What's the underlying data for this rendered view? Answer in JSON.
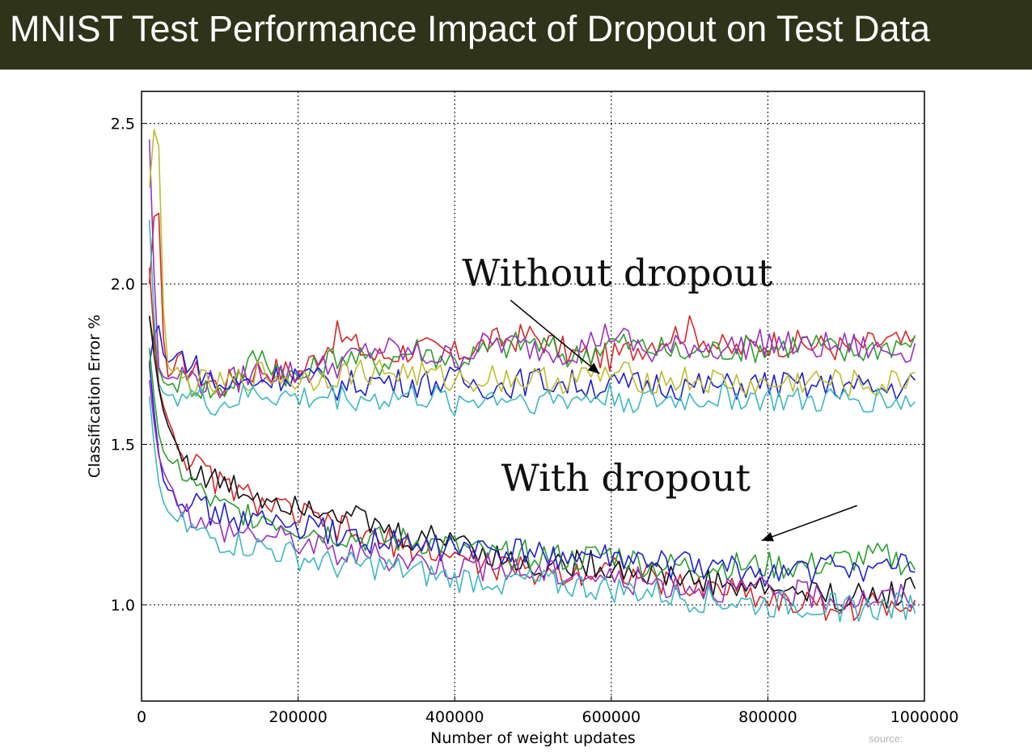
{
  "slide": {
    "title": "MNIST Test Performance Impact of Dropout on Test Data",
    "title_bar_color": "#2e3319",
    "source_label": "source:"
  },
  "chart_data": {
    "type": "line",
    "xlabel": "Number of weight updates",
    "ylabel": "Classification Error %",
    "xlim": [
      0,
      1000000
    ],
    "ylim": [
      0.7,
      2.6
    ],
    "xticks": [
      0,
      200000,
      400000,
      600000,
      800000,
      1000000
    ],
    "xtick_labels": [
      "0",
      "200000",
      "400000",
      "600000",
      "800000",
      "1000000"
    ],
    "yticks": [
      1.0,
      1.5,
      2.0,
      2.5
    ],
    "ytick_labels": [
      "1.0",
      "1.5",
      "2.0",
      "2.5"
    ],
    "grid": true,
    "legend": "none",
    "annotations": [
      {
        "text": "Without dropout",
        "x": 430000,
        "y": 2.05,
        "arrow_to": [
          585000,
          1.72
        ]
      },
      {
        "text": "With dropout",
        "x": 480000,
        "y": 1.41,
        "arrow_to": [
          792000,
          1.2
        ]
      }
    ],
    "series": [
      {
        "color": "#d62728",
        "values": [
          [
            10000,
            2.0
          ],
          [
            20000,
            2.35
          ],
          [
            30000,
            1.7
          ],
          [
            50000,
            1.75
          ],
          [
            100000,
            1.68
          ],
          [
            150000,
            1.74
          ],
          [
            200000,
            1.72
          ],
          [
            250000,
            1.84
          ],
          [
            300000,
            1.77
          ],
          [
            350000,
            1.8
          ],
          [
            400000,
            1.78
          ],
          [
            450000,
            1.82
          ],
          [
            500000,
            1.84
          ],
          [
            550000,
            1.78
          ],
          [
            600000,
            1.77
          ],
          [
            650000,
            1.82
          ],
          [
            700000,
            1.86
          ],
          [
            750000,
            1.79
          ],
          [
            800000,
            1.82
          ],
          [
            850000,
            1.81
          ],
          [
            900000,
            1.8
          ],
          [
            950000,
            1.82
          ],
          [
            990000,
            1.81
          ]
        ]
      },
      {
        "color": "#2ca02c",
        "values": [
          [
            10000,
            1.9
          ],
          [
            20000,
            1.75
          ],
          [
            30000,
            1.68
          ],
          [
            50000,
            1.7
          ],
          [
            100000,
            1.66
          ],
          [
            150000,
            1.78
          ],
          [
            200000,
            1.7
          ],
          [
            250000,
            1.78
          ],
          [
            300000,
            1.75
          ],
          [
            350000,
            1.8
          ],
          [
            400000,
            1.76
          ],
          [
            450000,
            1.8
          ],
          [
            500000,
            1.82
          ],
          [
            550000,
            1.77
          ],
          [
            600000,
            1.82
          ],
          [
            650000,
            1.8
          ],
          [
            700000,
            1.78
          ],
          [
            750000,
            1.8
          ],
          [
            800000,
            1.8
          ],
          [
            850000,
            1.82
          ],
          [
            900000,
            1.78
          ],
          [
            950000,
            1.81
          ],
          [
            990000,
            1.82
          ]
        ]
      },
      {
        "color": "#9b30c0",
        "values": [
          [
            10000,
            2.45
          ],
          [
            20000,
            1.75
          ],
          [
            30000,
            1.7
          ],
          [
            50000,
            1.72
          ],
          [
            100000,
            1.68
          ],
          [
            150000,
            1.73
          ],
          [
            200000,
            1.72
          ],
          [
            250000,
            1.75
          ],
          [
            300000,
            1.8
          ],
          [
            350000,
            1.78
          ],
          [
            400000,
            1.77
          ],
          [
            450000,
            1.82
          ],
          [
            500000,
            1.8
          ],
          [
            550000,
            1.79
          ],
          [
            600000,
            1.85
          ],
          [
            650000,
            1.78
          ],
          [
            700000,
            1.81
          ],
          [
            750000,
            1.8
          ],
          [
            800000,
            1.82
          ],
          [
            850000,
            1.8
          ],
          [
            900000,
            1.81
          ],
          [
            950000,
            1.79
          ],
          [
            990000,
            1.8
          ]
        ]
      },
      {
        "color": "#1f1fd0",
        "values": [
          [
            10000,
            1.75
          ],
          [
            20000,
            1.9
          ],
          [
            30000,
            1.75
          ],
          [
            50000,
            1.78
          ],
          [
            100000,
            1.68
          ],
          [
            150000,
            1.7
          ],
          [
            200000,
            1.72
          ],
          [
            250000,
            1.68
          ],
          [
            300000,
            1.7
          ],
          [
            350000,
            1.69
          ],
          [
            400000,
            1.7
          ],
          [
            450000,
            1.68
          ],
          [
            500000,
            1.7
          ],
          [
            550000,
            1.69
          ],
          [
            600000,
            1.68
          ],
          [
            650000,
            1.69
          ],
          [
            700000,
            1.68
          ],
          [
            750000,
            1.68
          ],
          [
            800000,
            1.69
          ],
          [
            850000,
            1.68
          ],
          [
            900000,
            1.68
          ],
          [
            950000,
            1.67
          ],
          [
            990000,
            1.69
          ]
        ]
      },
      {
        "color": "#bdbd2d",
        "values": [
          [
            10000,
            2.3
          ],
          [
            20000,
            2.6
          ],
          [
            30000,
            1.75
          ],
          [
            50000,
            1.7
          ],
          [
            100000,
            1.68
          ],
          [
            150000,
            1.72
          ],
          [
            200000,
            1.7
          ],
          [
            250000,
            1.72
          ],
          [
            300000,
            1.73
          ],
          [
            350000,
            1.72
          ],
          [
            400000,
            1.7
          ],
          [
            450000,
            1.71
          ],
          [
            500000,
            1.7
          ],
          [
            550000,
            1.7
          ],
          [
            600000,
            1.72
          ],
          [
            650000,
            1.7
          ],
          [
            700000,
            1.7
          ],
          [
            750000,
            1.69
          ],
          [
            800000,
            1.68
          ],
          [
            850000,
            1.7
          ],
          [
            900000,
            1.69
          ],
          [
            950000,
            1.68
          ],
          [
            990000,
            1.72
          ]
        ]
      },
      {
        "color": "#3cb8c0",
        "values": [
          [
            10000,
            2.2
          ],
          [
            20000,
            1.7
          ],
          [
            30000,
            1.65
          ],
          [
            50000,
            1.66
          ],
          [
            100000,
            1.62
          ],
          [
            150000,
            1.66
          ],
          [
            200000,
            1.64
          ],
          [
            250000,
            1.65
          ],
          [
            300000,
            1.64
          ],
          [
            350000,
            1.65
          ],
          [
            400000,
            1.63
          ],
          [
            450000,
            1.65
          ],
          [
            500000,
            1.64
          ],
          [
            550000,
            1.64
          ],
          [
            600000,
            1.65
          ],
          [
            650000,
            1.63
          ],
          [
            700000,
            1.64
          ],
          [
            750000,
            1.65
          ],
          [
            800000,
            1.64
          ],
          [
            850000,
            1.63
          ],
          [
            900000,
            1.64
          ],
          [
            950000,
            1.64
          ],
          [
            990000,
            1.63
          ]
        ]
      },
      {
        "color": "#d62728",
        "values": [
          [
            10000,
            2.05
          ],
          [
            20000,
            1.7
          ],
          [
            30000,
            1.6
          ],
          [
            50000,
            1.48
          ],
          [
            75000,
            1.42
          ],
          [
            100000,
            1.38
          ],
          [
            150000,
            1.32
          ],
          [
            200000,
            1.28
          ],
          [
            250000,
            1.24
          ],
          [
            300000,
            1.2
          ],
          [
            350000,
            1.18
          ],
          [
            400000,
            1.15
          ],
          [
            450000,
            1.12
          ],
          [
            500000,
            1.1
          ],
          [
            550000,
            1.1
          ],
          [
            600000,
            1.12
          ],
          [
            650000,
            1.08
          ],
          [
            700000,
            1.05
          ],
          [
            750000,
            1.06
          ],
          [
            800000,
            1.02
          ],
          [
            850000,
            1.0
          ],
          [
            900000,
            0.99
          ],
          [
            950000,
            1.0
          ],
          [
            990000,
            1.02
          ]
        ]
      },
      {
        "color": "#111111",
        "values": [
          [
            10000,
            1.9
          ],
          [
            20000,
            1.7
          ],
          [
            30000,
            1.58
          ],
          [
            50000,
            1.47
          ],
          [
            75000,
            1.4
          ],
          [
            100000,
            1.38
          ],
          [
            150000,
            1.34
          ],
          [
            200000,
            1.32
          ],
          [
            250000,
            1.3
          ],
          [
            300000,
            1.24
          ],
          [
            350000,
            1.2
          ],
          [
            400000,
            1.22
          ],
          [
            450000,
            1.15
          ],
          [
            500000,
            1.12
          ],
          [
            550000,
            1.13
          ],
          [
            600000,
            1.12
          ],
          [
            650000,
            1.1
          ],
          [
            700000,
            1.08
          ],
          [
            750000,
            1.06
          ],
          [
            800000,
            1.05
          ],
          [
            850000,
            1.04
          ],
          [
            900000,
            1.02
          ],
          [
            950000,
            1.03
          ],
          [
            990000,
            1.06
          ]
        ]
      },
      {
        "color": "#2ca02c",
        "values": [
          [
            10000,
            1.8
          ],
          [
            20000,
            1.55
          ],
          [
            30000,
            1.46
          ],
          [
            50000,
            1.42
          ],
          [
            75000,
            1.35
          ],
          [
            100000,
            1.3
          ],
          [
            150000,
            1.28
          ],
          [
            200000,
            1.24
          ],
          [
            250000,
            1.22
          ],
          [
            300000,
            1.2
          ],
          [
            350000,
            1.2
          ],
          [
            400000,
            1.18
          ],
          [
            450000,
            1.15
          ],
          [
            500000,
            1.16
          ],
          [
            550000,
            1.14
          ],
          [
            600000,
            1.16
          ],
          [
            650000,
            1.12
          ],
          [
            700000,
            1.12
          ],
          [
            750000,
            1.12
          ],
          [
            800000,
            1.12
          ],
          [
            850000,
            1.12
          ],
          [
            900000,
            1.14
          ],
          [
            950000,
            1.15
          ],
          [
            990000,
            1.12
          ]
        ]
      },
      {
        "color": "#1f1fd0",
        "values": [
          [
            10000,
            1.75
          ],
          [
            20000,
            1.5
          ],
          [
            30000,
            1.36
          ],
          [
            50000,
            1.35
          ],
          [
            75000,
            1.3
          ],
          [
            100000,
            1.28
          ],
          [
            150000,
            1.26
          ],
          [
            200000,
            1.24
          ],
          [
            250000,
            1.22
          ],
          [
            300000,
            1.2
          ],
          [
            350000,
            1.18
          ],
          [
            400000,
            1.18
          ],
          [
            450000,
            1.16
          ],
          [
            500000,
            1.16
          ],
          [
            550000,
            1.15
          ],
          [
            600000,
            1.14
          ],
          [
            650000,
            1.13
          ],
          [
            700000,
            1.12
          ],
          [
            750000,
            1.11
          ],
          [
            800000,
            1.1
          ],
          [
            850000,
            1.11
          ],
          [
            900000,
            1.12
          ],
          [
            950000,
            1.11
          ],
          [
            990000,
            1.12
          ]
        ]
      },
      {
        "color": "#9b30c0",
        "values": [
          [
            10000,
            1.7
          ],
          [
            20000,
            1.48
          ],
          [
            30000,
            1.4
          ],
          [
            50000,
            1.32
          ],
          [
            75000,
            1.25
          ],
          [
            100000,
            1.24
          ],
          [
            150000,
            1.22
          ],
          [
            200000,
            1.2
          ],
          [
            250000,
            1.16
          ],
          [
            300000,
            1.15
          ],
          [
            350000,
            1.14
          ],
          [
            400000,
            1.12
          ],
          [
            450000,
            1.12
          ],
          [
            500000,
            1.1
          ],
          [
            550000,
            1.1
          ],
          [
            600000,
            1.08
          ],
          [
            650000,
            1.07
          ],
          [
            700000,
            1.06
          ],
          [
            750000,
            1.05
          ],
          [
            800000,
            1.04
          ],
          [
            850000,
            1.03
          ],
          [
            900000,
            1.02
          ],
          [
            950000,
            1.02
          ],
          [
            990000,
            1.03
          ]
        ]
      },
      {
        "color": "#3cb8c0",
        "values": [
          [
            10000,
            1.65
          ],
          [
            20000,
            1.4
          ],
          [
            30000,
            1.3
          ],
          [
            50000,
            1.25
          ],
          [
            75000,
            1.22
          ],
          [
            100000,
            1.2
          ],
          [
            150000,
            1.18
          ],
          [
            200000,
            1.15
          ],
          [
            250000,
            1.12
          ],
          [
            300000,
            1.12
          ],
          [
            350000,
            1.1
          ],
          [
            400000,
            1.08
          ],
          [
            450000,
            1.08
          ],
          [
            500000,
            1.07
          ],
          [
            550000,
            1.06
          ],
          [
            600000,
            1.05
          ],
          [
            650000,
            1.04
          ],
          [
            700000,
            1.02
          ],
          [
            750000,
            1.01
          ],
          [
            800000,
            1.0
          ],
          [
            850000,
            1.0
          ],
          [
            900000,
            0.99
          ],
          [
            950000,
            0.99
          ],
          [
            990000,
            1.0
          ]
        ]
      }
    ]
  }
}
